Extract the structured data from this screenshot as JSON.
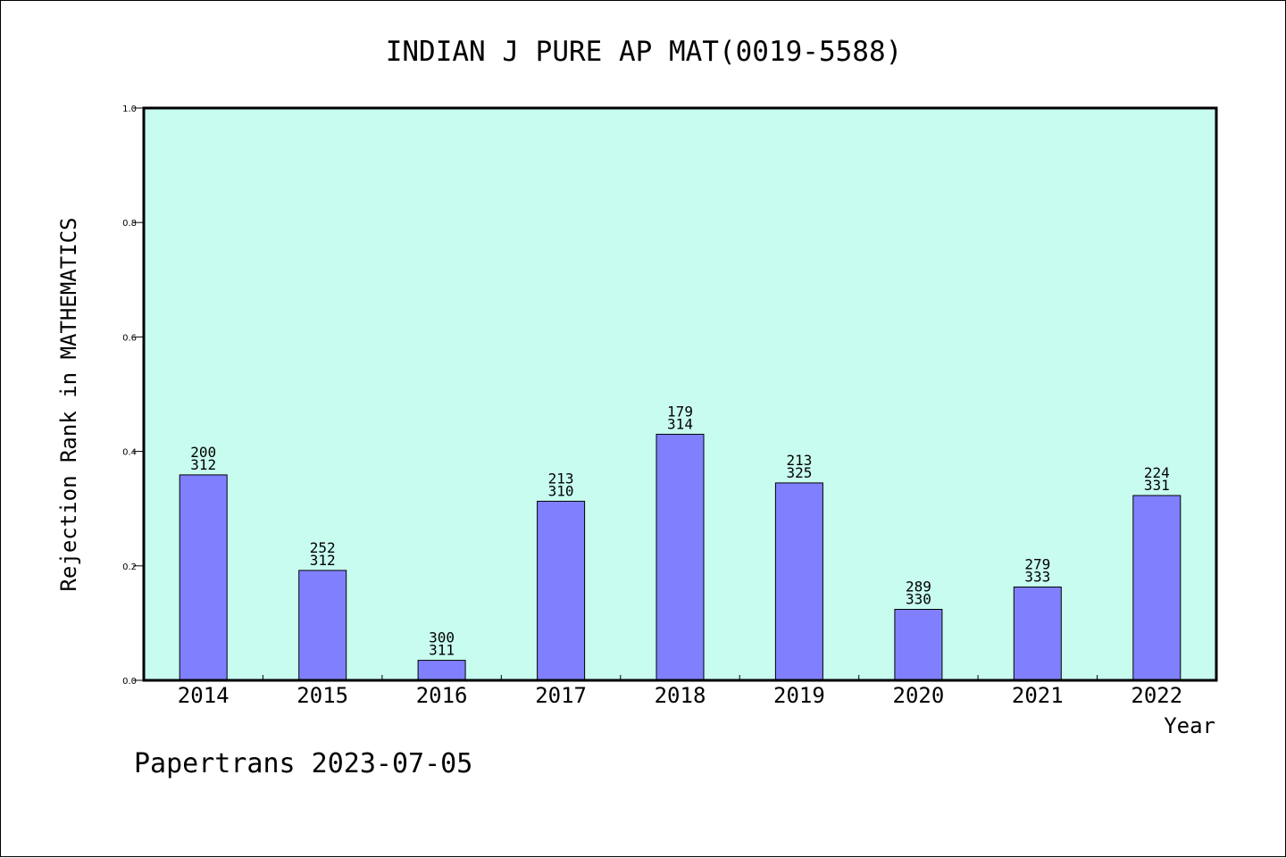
{
  "chart_data": {
    "type": "bar",
    "title": "INDIAN J PURE AP MAT(0019-5588)",
    "xlabel": "Year",
    "ylabel": "Rejection Rank in MATHEMATICS",
    "categories": [
      "2014",
      "2015",
      "2016",
      "2017",
      "2018",
      "2019",
      "2020",
      "2021",
      "2022"
    ],
    "values": [
      0.359,
      0.192,
      0.035,
      0.313,
      0.43,
      0.345,
      0.124,
      0.163,
      0.323
    ],
    "data_labels": [
      [
        "200",
        "312"
      ],
      [
        "252",
        "312"
      ],
      [
        "300",
        "311"
      ],
      [
        "213",
        "310"
      ],
      [
        "179",
        "314"
      ],
      [
        "213",
        "325"
      ],
      [
        "289",
        "330"
      ],
      [
        "279",
        "333"
      ],
      [
        "224",
        "331"
      ]
    ],
    "ylim": [
      0,
      1.0
    ],
    "yticks": [
      "0.0",
      "0.2",
      "0.4",
      "0.6",
      "0.8",
      "1.0"
    ],
    "grid": false,
    "colors": {
      "plot_background": "#c8fcef",
      "bar_fill": "#8080ff",
      "bar_stroke": "#000000"
    }
  },
  "footer": "Papertrans 2023-07-05"
}
